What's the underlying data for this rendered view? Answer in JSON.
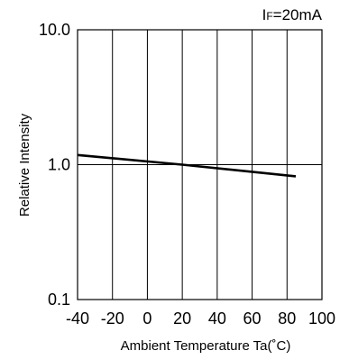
{
  "chart_data": {
    "type": "line",
    "title": "",
    "annotation": {
      "prefix": "I",
      "subscript": "F",
      "rest": "=20mA"
    },
    "xlabel": "Ambient Temperature  Ta(˚C)",
    "ylabel": "Relative Intensity",
    "xlim": [
      -40,
      100
    ],
    "ylim": [
      0.1,
      10.0
    ],
    "yscale": "log",
    "grid": true,
    "x_ticks": [
      -40,
      -20,
      0,
      20,
      40,
      60,
      80,
      100
    ],
    "x_tick_labels": [
      "-40",
      "-20",
      "0",
      "20",
      "40",
      "60",
      "80",
      "100"
    ],
    "y_ticks": [
      0.1,
      1.0,
      10.0
    ],
    "y_tick_labels": [
      "0.1",
      "1.0",
      "10.0"
    ],
    "series": [
      {
        "x": [
          -40,
          20,
          85
        ],
        "y": [
          1.18,
          1.0,
          0.82
        ]
      }
    ],
    "colors": {
      "line": "#000000",
      "grid": "#000000"
    }
  }
}
